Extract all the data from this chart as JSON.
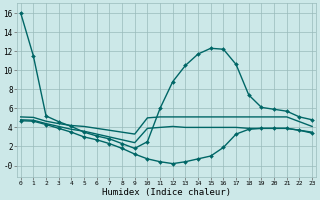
{
  "xlabel": "Humidex (Indice chaleur)",
  "background_color": "#cce8e8",
  "grid_color": "#99bbbb",
  "line_color": "#006666",
  "xlim": [
    -0.3,
    23.3
  ],
  "ylim": [
    -1.2,
    17.0
  ],
  "yticks": [
    0,
    2,
    4,
    6,
    8,
    10,
    12,
    14,
    16
  ],
  "ytick_labels": [
    "-0",
    "2",
    "4",
    "6",
    "8",
    "10",
    "12",
    "14",
    "16"
  ],
  "xticks": [
    0,
    1,
    2,
    3,
    4,
    5,
    6,
    7,
    8,
    9,
    10,
    11,
    12,
    13,
    14,
    15,
    16,
    17,
    18,
    19,
    20,
    21,
    22,
    23
  ],
  "curve1": {
    "x": [
      0,
      1,
      2,
      3,
      4,
      5,
      6,
      7,
      8,
      9,
      10,
      11,
      12,
      13,
      14,
      15,
      16,
      17,
      18,
      19,
      20,
      21,
      22,
      23
    ],
    "y": [
      16.0,
      11.5,
      5.2,
      4.6,
      4.1,
      3.5,
      3.1,
      2.8,
      2.3,
      1.8,
      2.5,
      6.0,
      8.8,
      10.5,
      11.7,
      12.3,
      12.2,
      10.6,
      7.4,
      6.1,
      5.9,
      5.7,
      5.1,
      4.8
    ],
    "marker": true,
    "lw": 1.0
  },
  "curve2": {
    "x": [
      0,
      1,
      2,
      3,
      4,
      5,
      6,
      7,
      8,
      9,
      10,
      11,
      12,
      13,
      14,
      15,
      16,
      17,
      18,
      19,
      20,
      21,
      22,
      23
    ],
    "y": [
      5.1,
      5.05,
      4.65,
      4.4,
      4.2,
      4.1,
      3.9,
      3.7,
      3.5,
      3.3,
      5.0,
      5.1,
      5.1,
      5.1,
      5.1,
      5.1,
      5.1,
      5.1,
      5.1,
      5.1,
      5.1,
      5.1,
      4.6,
      4.1
    ],
    "marker": false,
    "lw": 1.0
  },
  "curve3": {
    "x": [
      0,
      1,
      2,
      3,
      4,
      5,
      6,
      7,
      8,
      9,
      10,
      11,
      12,
      13,
      14,
      15,
      16,
      17,
      18,
      19,
      20,
      21,
      22,
      23
    ],
    "y": [
      4.8,
      4.75,
      4.4,
      4.1,
      3.8,
      3.6,
      3.3,
      3.0,
      2.7,
      2.4,
      3.9,
      4.0,
      4.1,
      4.0,
      4.0,
      4.0,
      4.0,
      4.0,
      3.9,
      3.9,
      3.9,
      3.9,
      3.7,
      3.5
    ],
    "marker": false,
    "lw": 1.0
  },
  "curve4": {
    "x": [
      0,
      1,
      2,
      3,
      4,
      5,
      6,
      7,
      8,
      9,
      10,
      11,
      12,
      13,
      14,
      15,
      16,
      17,
      18,
      19,
      20,
      21,
      22,
      23
    ],
    "y": [
      4.7,
      4.65,
      4.3,
      3.9,
      3.5,
      3.0,
      2.7,
      2.3,
      1.8,
      1.2,
      0.7,
      0.4,
      0.2,
      0.4,
      0.7,
      1.0,
      1.9,
      3.3,
      3.8,
      3.9,
      3.9,
      3.9,
      3.7,
      3.4
    ],
    "marker": true,
    "lw": 1.0
  }
}
